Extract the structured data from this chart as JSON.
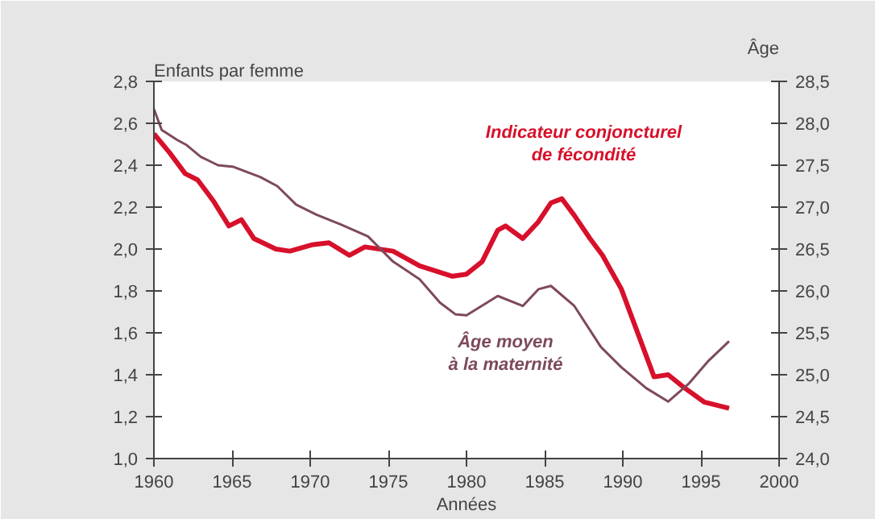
{
  "chart_data": {
    "type": "line",
    "xlabel": "Années",
    "ylabel": "Enfants par femme",
    "y2label": "Âge",
    "xlim": [
      1960,
      2000
    ],
    "xticks": [
      1960,
      1965,
      1970,
      1975,
      1980,
      1985,
      1990,
      1995,
      2000
    ],
    "ylim": [
      1.0,
      2.8
    ],
    "yticks": [
      {
        "value": 1.0,
        "label": "1,0"
      },
      {
        "value": 1.2,
        "label": "1,2"
      },
      {
        "value": 1.4,
        "label": "1,4"
      },
      {
        "value": 1.6,
        "label": "1,6"
      },
      {
        "value": 1.8,
        "label": "1,8"
      },
      {
        "value": 2.0,
        "label": "2,0"
      },
      {
        "value": 2.2,
        "label": "2,2"
      },
      {
        "value": 2.4,
        "label": "2,4"
      },
      {
        "value": 2.6,
        "label": "2,6"
      },
      {
        "value": 2.8,
        "label": "2,8"
      }
    ],
    "y2lim": [
      24.0,
      28.5
    ],
    "y2ticks": [
      {
        "value": 24.0,
        "label": "24,0"
      },
      {
        "value": 24.5,
        "label": "24,5"
      },
      {
        "value": 25.0,
        "label": "25,0"
      },
      {
        "value": 25.5,
        "label": "25,5"
      },
      {
        "value": 26.0,
        "label": "26,0"
      },
      {
        "value": 26.5,
        "label": "26,5"
      },
      {
        "value": 27.0,
        "label": "27,0"
      },
      {
        "value": 27.5,
        "label": "27,5"
      },
      {
        "value": 28.0,
        "label": "28,0"
      },
      {
        "value": 28.5,
        "label": "28,5"
      }
    ],
    "grid": false,
    "series": [
      {
        "name": "Indicateur conjoncturel\nde fécondité",
        "color": "#d7102b",
        "x": [
          1960,
          1961,
          1962,
          1962.8,
          1963.8,
          1964.8,
          1965.6,
          1966.4,
          1967.8,
          1968.7,
          1970.1,
          1971.2,
          1972.5,
          1973.5,
          1975.3,
          1977,
          1979.1,
          1980,
          1981,
          1982,
          1982.5,
          1983.6,
          1984.6,
          1985.4,
          1986.1,
          1986.9,
          1987.9,
          1988.7,
          1989.9,
          1990.9,
          1992,
          1992.9,
          1993.9,
          1995.2,
          1996.8
        ],
        "values": [
          2.55,
          2.46,
          2.36,
          2.33,
          2.23,
          2.11,
          2.14,
          2.05,
          2.0,
          1.99,
          2.02,
          2.03,
          1.97,
          2.01,
          1.99,
          1.92,
          1.87,
          1.88,
          1.94,
          2.09,
          2.11,
          2.05,
          2.13,
          2.22,
          2.24,
          2.16,
          2.05,
          1.97,
          1.81,
          1.61,
          1.39,
          1.4,
          1.34,
          1.27,
          1.24
        ]
      },
      {
        "name": "Âge moyen\nà la maternité",
        "color": "#7d4a5a",
        "axis": "y2",
        "x": [
          1960,
          1960.5,
          1961.5,
          1962.1,
          1963,
          1964.1,
          1965.1,
          1966.8,
          1967.9,
          1969.1,
          1970.4,
          1972,
          1973.7,
          1975.3,
          1977,
          1978.3,
          1979.3,
          1980,
          1982,
          1983.6,
          1984.6,
          1985.4,
          1986.9,
          1988.6,
          1989.9,
          1991.5,
          1992.9,
          1994.2,
          1995.5,
          1996.8
        ],
        "values": [
          28.17,
          27.92,
          27.8,
          27.74,
          27.6,
          27.5,
          27.48,
          27.36,
          27.25,
          27.03,
          26.91,
          26.79,
          26.65,
          26.35,
          26.14,
          25.86,
          25.72,
          25.71,
          25.94,
          25.82,
          26.02,
          26.06,
          25.82,
          25.33,
          25.09,
          24.84,
          24.68,
          24.89,
          25.17,
          25.4
        ]
      }
    ]
  }
}
